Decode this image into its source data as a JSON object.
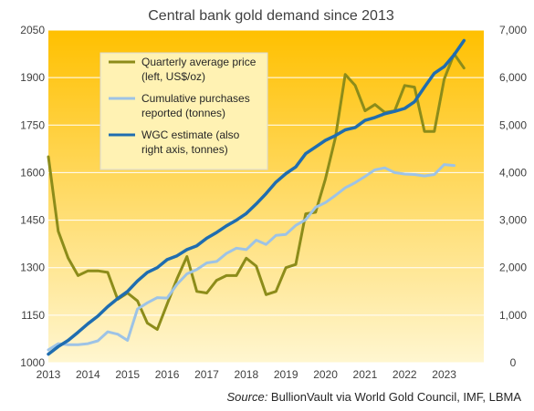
{
  "chart_data": {
    "type": "line",
    "title": "Central bank gold demand since 2013",
    "source_label": "Source:",
    "source_text": " BullionVault via World Gold Council, IMF, LBMA",
    "x_ticks": [
      "2013",
      "2014",
      "2015",
      "2016",
      "2017",
      "2018",
      "2019",
      "2020",
      "2021",
      "2022",
      "2023"
    ],
    "xlim": [
      2013,
      2024
    ],
    "left_axis": {
      "ylim": [
        1000,
        2050
      ],
      "ticks": [
        "1000",
        "1150",
        "1300",
        "1450",
        "1600",
        "1750",
        "1900",
        "2050"
      ]
    },
    "right_axis": {
      "ylim": [
        0,
        7000
      ],
      "ticks": [
        "0",
        "1,000",
        "2,000",
        "3,000",
        "4,000",
        "5,000",
        "6,000",
        "7,000"
      ]
    },
    "legend": {
      "placement": "top-left",
      "entries": [
        {
          "lines": [
            "Quarterly average price",
            "(left, US$/oz)"
          ]
        },
        {
          "lines": [
            "Cumulative purchases",
            "reported (tonnes)"
          ]
        },
        {
          "lines": [
            "WGC estimate (also",
            "right axis, tonnes)"
          ]
        }
      ]
    },
    "colors": {
      "price": "#8c8c1a",
      "reported": "#9dc3e6",
      "wgc": "#1f6db0",
      "bg_top": "#ffc000",
      "bg_bottom": "#fff6d0",
      "grid": "#ffffff"
    },
    "series": [
      {
        "axis": "left",
        "x": [
          2013.0,
          2013.25,
          2013.5,
          2013.75,
          2014.0,
          2014.25,
          2014.5,
          2014.75,
          2015.0,
          2015.25,
          2015.5,
          2015.75,
          2016.0,
          2016.25,
          2016.5,
          2016.75,
          2017.0,
          2017.25,
          2017.5,
          2017.75,
          2018.0,
          2018.25,
          2018.5,
          2018.75,
          2019.0,
          2019.25,
          2019.5,
          2019.75,
          2020.0,
          2020.25,
          2020.5,
          2020.75,
          2021.0,
          2021.25,
          2021.5,
          2021.75,
          2022.0,
          2022.25,
          2022.5,
          2022.75,
          2023.0,
          2023.25,
          2023.5
        ],
        "values": [
          1650,
          1415,
          1330,
          1275,
          1290,
          1290,
          1285,
          1200,
          1220,
          1195,
          1125,
          1105,
          1185,
          1265,
          1335,
          1225,
          1220,
          1260,
          1275,
          1275,
          1330,
          1305,
          1215,
          1225,
          1300,
          1310,
          1470,
          1475,
          1580,
          1710,
          1910,
          1875,
          1795,
          1815,
          1790,
          1795,
          1875,
          1870,
          1730,
          1730,
          1895,
          1975,
          1930
        ]
      },
      {
        "axis": "right",
        "x": [
          2013.0,
          2013.25,
          2013.5,
          2013.75,
          2014.0,
          2014.25,
          2014.5,
          2014.75,
          2015.0,
          2015.25,
          2015.5,
          2015.75,
          2016.0,
          2016.25,
          2016.5,
          2016.75,
          2017.0,
          2017.25,
          2017.5,
          2017.75,
          2018.0,
          2018.25,
          2018.5,
          2018.75,
          2019.0,
          2019.25,
          2019.5,
          2019.75,
          2020.0,
          2020.25,
          2020.5,
          2020.75,
          2021.0,
          2021.25,
          2021.5,
          2021.75,
          2022.0,
          2022.25,
          2022.5,
          2022.75,
          2023.0,
          2023.25
        ],
        "values": [
          270,
          400,
          380,
          380,
          400,
          460,
          650,
          600,
          470,
          1130,
          1260,
          1370,
          1360,
          1650,
          1870,
          1960,
          2100,
          2130,
          2300,
          2410,
          2380,
          2580,
          2490,
          2680,
          2700,
          2890,
          3010,
          3270,
          3370,
          3520,
          3680,
          3790,
          3920,
          4060,
          4100,
          4000,
          3970,
          3960,
          3930,
          3960,
          4170,
          4150
        ]
      },
      {
        "axis": "right",
        "x": [
          2013.0,
          2013.25,
          2013.5,
          2013.75,
          2014.0,
          2014.25,
          2014.5,
          2014.75,
          2015.0,
          2015.25,
          2015.5,
          2015.75,
          2016.0,
          2016.25,
          2016.5,
          2016.75,
          2017.0,
          2017.25,
          2017.5,
          2017.75,
          2018.0,
          2018.25,
          2018.5,
          2018.75,
          2019.0,
          2019.25,
          2019.5,
          2019.75,
          2020.0,
          2020.25,
          2020.5,
          2020.75,
          2021.0,
          2021.25,
          2021.5,
          2021.75,
          2022.0,
          2022.25,
          2022.5,
          2022.75,
          2023.0,
          2023.25,
          2023.5
        ],
        "values": [
          180,
          340,
          470,
          640,
          820,
          980,
          1180,
          1350,
          1500,
          1720,
          1900,
          2000,
          2170,
          2250,
          2380,
          2460,
          2620,
          2740,
          2880,
          3000,
          3140,
          3340,
          3560,
          3800,
          3980,
          4120,
          4400,
          4540,
          4680,
          4780,
          4900,
          4950,
          5100,
          5160,
          5240,
          5290,
          5350,
          5490,
          5800,
          6090,
          6230,
          6480,
          6780
        ]
      }
    ]
  }
}
